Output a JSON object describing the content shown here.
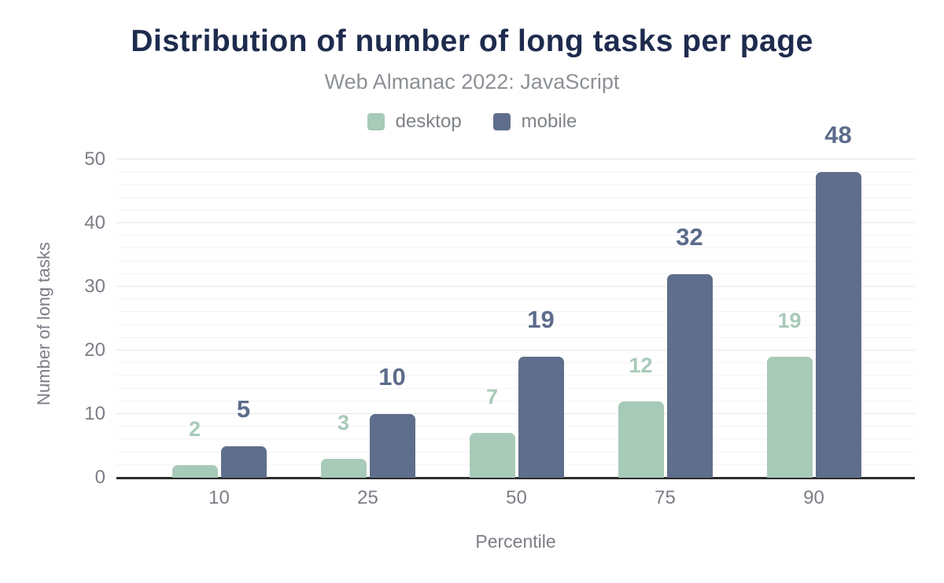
{
  "chart": {
    "title": "Distribution of number of long tasks per page",
    "subtitle": "Web Almanac 2022: JavaScript",
    "xlabel": "Percentile",
    "ylabel": "Number of long tasks"
  },
  "chart_data": {
    "type": "bar",
    "categories": [
      "10",
      "25",
      "50",
      "75",
      "90"
    ],
    "series": [
      {
        "name": "desktop",
        "color": "#a8cab8",
        "label_color": "#a8cab8",
        "values": [
          2,
          3,
          7,
          12,
          19
        ]
      },
      {
        "name": "mobile",
        "color": "#5f6e8c",
        "label_color": "#5d6c8b",
        "values": [
          5,
          10,
          19,
          32,
          48
        ]
      }
    ],
    "title": "Distribution of number of long tasks per page",
    "subtitle": "Web Almanac 2022: JavaScript",
    "xlabel": "Percentile",
    "ylabel": "Number of long tasks",
    "ylim": [
      0,
      50
    ],
    "y_major_ticks": [
      0,
      10,
      20,
      30,
      40,
      50
    ],
    "y_minor_step": 2,
    "grid": "horizontal",
    "legend_position": "top",
    "data_labels": "above-bars"
  },
  "colors": {
    "title_text": "#1e2b4e",
    "subtitle_text": "#8d9196",
    "axis_text": "#7b7e85",
    "legend_text": "#7f8388",
    "gridline_major": "#e7e7ea",
    "gridline_minor": "#f4f4f6",
    "axis_line": "#2d2d2d",
    "background": "#ffffff"
  }
}
